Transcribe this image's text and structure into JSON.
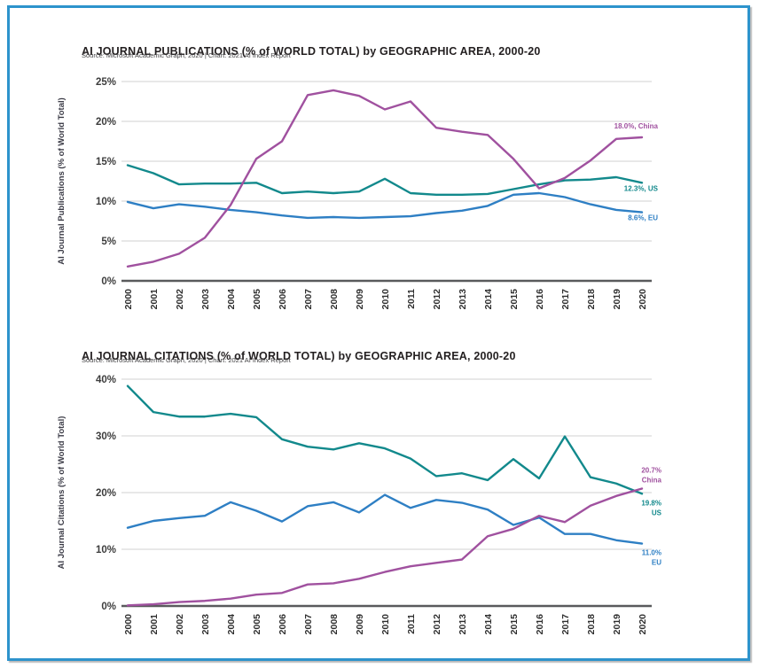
{
  "page": {
    "frame_color": "#2D93CC",
    "background": "#ffffff"
  },
  "chart_data": [
    {
      "type": "line",
      "title": "AI JOURNAL PUBLICATIONS (% of WORLD TOTAL) by GEOGRAPHIC AREA, 2000-20",
      "source": "Source: Microsoft Academic Graph, 2020 | Chart: 2021 AI Index Report",
      "ylabel": "AI Journal Publications (% of World Total)",
      "x": [
        2000,
        2001,
        2002,
        2003,
        2004,
        2005,
        2006,
        2007,
        2008,
        2009,
        2010,
        2011,
        2012,
        2013,
        2014,
        2015,
        2016,
        2017,
        2018,
        2019,
        2020
      ],
      "ylim": [
        0,
        25
      ],
      "yticks": [
        0,
        5,
        10,
        15,
        20,
        25
      ],
      "grid": true,
      "legend_position": "line-end-labels",
      "series": [
        {
          "name": "US",
          "color": "#12898C",
          "values": [
            14.5,
            13.5,
            12.1,
            12.2,
            12.2,
            12.3,
            11.0,
            11.2,
            11.0,
            11.2,
            12.8,
            11.0,
            10.8,
            10.8,
            10.9,
            11.5,
            12.1,
            12.6,
            12.7,
            13.0,
            12.3
          ],
          "end_label_lines": [
            "12.3%, US"
          ],
          "end_label_dy": 9
        },
        {
          "name": "EU",
          "color": "#2E7FC4",
          "values": [
            9.9,
            9.1,
            9.6,
            9.3,
            8.9,
            8.6,
            8.2,
            7.9,
            8.0,
            7.9,
            8.0,
            8.1,
            8.5,
            8.8,
            9.4,
            10.8,
            11.0,
            10.5,
            9.6,
            8.9,
            8.6
          ],
          "end_label_lines": [
            "8.6%, EU"
          ],
          "end_label_dy": 9
        },
        {
          "name": "China",
          "color": "#A0519F",
          "values": [
            1.8,
            2.4,
            3.4,
            5.4,
            9.5,
            15.3,
            17.5,
            23.3,
            23.9,
            23.2,
            21.5,
            22.5,
            19.2,
            18.7,
            18.3,
            15.3,
            11.6,
            12.9,
            15.1,
            17.8,
            18.0
          ],
          "end_label_lines": [
            "18.0%, China"
          ],
          "end_label_dy": -10
        }
      ]
    },
    {
      "type": "line",
      "title": "AI JOURNAL CITATIONS (% of WORLD TOTAL) by GEOGRAPHIC AREA, 2000-20",
      "source": "Source: Microsoft Academic Graph, 2020 | Chart: 2021 AI Index Report",
      "ylabel": "AI Journal Citations (% of World Total)",
      "x": [
        2000,
        2001,
        2002,
        2003,
        2004,
        2005,
        2006,
        2007,
        2008,
        2009,
        2010,
        2011,
        2012,
        2013,
        2014,
        2015,
        2016,
        2017,
        2018,
        2019,
        2020
      ],
      "ylim": [
        0,
        40
      ],
      "yticks": [
        0,
        10,
        20,
        30,
        40
      ],
      "grid": true,
      "legend_position": "line-end-labels",
      "series": [
        {
          "name": "US",
          "color": "#12898C",
          "values": [
            38.8,
            34.2,
            33.4,
            33.4,
            33.9,
            33.3,
            29.4,
            28.1,
            27.6,
            28.7,
            27.8,
            26.0,
            22.9,
            23.4,
            22.2,
            25.9,
            22.5,
            29.9,
            22.7,
            21.6,
            19.8
          ],
          "end_label_lines": [
            "19.8%",
            "US"
          ],
          "end_label_dy": 13
        },
        {
          "name": "EU",
          "color": "#2E7FC4",
          "values": [
            13.8,
            15.0,
            15.5,
            15.9,
            18.3,
            16.8,
            14.9,
            17.6,
            18.3,
            16.5,
            19.6,
            17.3,
            18.7,
            18.2,
            17.0,
            14.3,
            15.6,
            12.7,
            12.7,
            11.6,
            11.0
          ],
          "end_label_lines": [
            "11.0%",
            "EU"
          ],
          "end_label_dy": 13
        },
        {
          "name": "China",
          "color": "#A0519F",
          "values": [
            0.1,
            0.3,
            0.7,
            0.9,
            1.3,
            2.0,
            2.3,
            3.8,
            4.0,
            4.8,
            6.0,
            7.0,
            7.6,
            8.2,
            12.3,
            13.6,
            15.9,
            14.8,
            17.7,
            19.4,
            20.7
          ],
          "end_label_lines": [
            "20.7%",
            "China"
          ],
          "end_label_dy": -18
        }
      ]
    }
  ]
}
